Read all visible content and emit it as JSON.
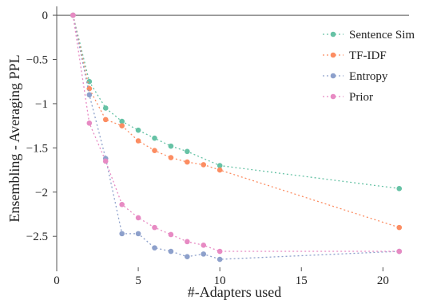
{
  "chart_data": {
    "type": "line",
    "title": "",
    "xlabel": "#-Adapters used",
    "ylabel": "Ensembling - Averaging PPL",
    "xlim": [
      0,
      21.6
    ],
    "ylim": [
      -2.85,
      0.1
    ],
    "x_ticks": [
      0,
      5,
      10,
      15,
      20
    ],
    "x_tick_labels": [
      "0",
      "5",
      "10",
      "15",
      "20"
    ],
    "y_ticks": [
      0,
      -0.5,
      -1,
      -1.5,
      -2,
      -2.5
    ],
    "y_tick_labels": [
      "0",
      "−0.5",
      "−1",
      "−1.5",
      "−2",
      "−2.5"
    ],
    "zero_line": true,
    "grid": false,
    "legend_position": "top-right",
    "series": [
      {
        "name": "Sentence Sim",
        "color": "#66c2a5",
        "x": [
          1,
          2,
          3,
          4,
          5,
          6,
          7,
          8,
          10,
          21
        ],
        "y": [
          0,
          -0.75,
          -1.05,
          -1.2,
          -1.3,
          -1.39,
          -1.48,
          -1.54,
          -1.7,
          -1.96
        ]
      },
      {
        "name": "TF-IDF",
        "color": "#fc8d62",
        "x": [
          1,
          2,
          3,
          4,
          5,
          6,
          7,
          8,
          9,
          10,
          21
        ],
        "y": [
          0,
          -0.83,
          -1.18,
          -1.25,
          -1.42,
          -1.53,
          -1.61,
          -1.66,
          -1.69,
          -1.75,
          -2.4
        ]
      },
      {
        "name": "Entropy",
        "color": "#8da0cb",
        "x": [
          1,
          2,
          3,
          4,
          5,
          6,
          7,
          8,
          9,
          10,
          21
        ],
        "y": [
          0,
          -0.9,
          -1.62,
          -2.47,
          -2.47,
          -2.63,
          -2.67,
          -2.73,
          -2.7,
          -2.76,
          -2.67
        ]
      },
      {
        "name": "Prior",
        "color": "#e78ac3",
        "x": [
          1,
          2,
          3,
          4,
          5,
          6,
          7,
          8,
          9,
          10,
          21
        ],
        "y": [
          0,
          -1.22,
          -1.65,
          -2.14,
          -2.29,
          -2.4,
          -2.48,
          -2.56,
          -2.6,
          -2.67,
          -2.67
        ]
      }
    ]
  }
}
